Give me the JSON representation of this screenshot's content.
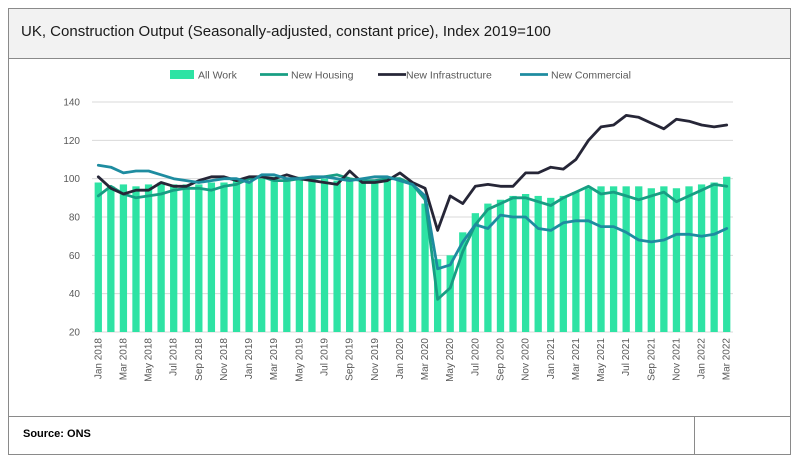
{
  "title": "UK, Construction Output (Seasonally-adjusted, constant price), Index 2019=100",
  "source": "Source: ONS",
  "colors": {
    "all_work": "#2EE3A4",
    "new_housing": "#179E83",
    "new_infrastructure": "#262637",
    "new_commercial": "#1E8CA0",
    "grid": "#d9d9d9"
  },
  "chart_data": {
    "type": "bar",
    "title": "",
    "xlabel": "",
    "ylabel": "",
    "ylim": [
      20,
      140
    ],
    "yticks": [
      20,
      40,
      60,
      80,
      100,
      120,
      140
    ],
    "grid": true,
    "legend_position": "top",
    "categories": [
      "Jan 2018",
      "Feb 2018",
      "Mar 2018",
      "Apr 2018",
      "May 2018",
      "Jun 2018",
      "Jul 2018",
      "Aug 2018",
      "Sep 2018",
      "Oct 2018",
      "Nov 2018",
      "Dec 2018",
      "Jan 2019",
      "Feb 2019",
      "Mar 2019",
      "Apr 2019",
      "May 2019",
      "Jun 2019",
      "Jul 2019",
      "Aug 2019",
      "Sep 2019",
      "Oct 2019",
      "Nov 2019",
      "Dec 2019",
      "Jan 2020",
      "Feb 2020",
      "Mar 2020",
      "Apr 2020",
      "May 2020",
      "Jun 2020",
      "Jul 2020",
      "Aug 2020",
      "Sep 2020",
      "Oct 2020",
      "Nov 2020",
      "Dec 2020",
      "Jan 2021",
      "Feb 2021",
      "Mar 2021",
      "Apr 2021",
      "May 2021",
      "Jun 2021",
      "Jul 2021",
      "Aug 2021",
      "Sep 2021",
      "Oct 2021",
      "Nov 2021",
      "Dec 2021",
      "Jan 2022",
      "Feb 2022",
      "Mar 2022"
    ],
    "tick_labels": [
      "Jan 2018",
      "Mar 2018",
      "May 2018",
      "Jul 2018",
      "Sep 2018",
      "Nov 2018",
      "Jan 2019",
      "Mar 2019",
      "May 2019",
      "Jul 2019",
      "Sep 2019",
      "Nov 2019",
      "Jan 2020",
      "Mar 2020",
      "May 2020",
      "Jul 2020",
      "Sep 2020",
      "Nov 2020",
      "Jan 2021",
      "Mar 2021",
      "May 2021",
      "Jul 2021",
      "Sep 2021",
      "Nov 2021",
      "Jan 2022",
      "Mar 2022"
    ],
    "series": [
      {
        "name": "All Work",
        "kind": "bar",
        "values": [
          98,
          96,
          97,
          96,
          97,
          98,
          97,
          97,
          97,
          98,
          98,
          99,
          99,
          100,
          101,
          100,
          101,
          100,
          100,
          99,
          100,
          99,
          99,
          100,
          99,
          98,
          87,
          58,
          60,
          72,
          82,
          87,
          89,
          91,
          92,
          91,
          90,
          91,
          93,
          95,
          96,
          96,
          96,
          96,
          95,
          96,
          95,
          96,
          97,
          98,
          101
        ]
      },
      {
        "name": "New Housing",
        "kind": "line",
        "values": [
          91,
          96,
          92,
          90,
          91,
          92,
          94,
          95,
          95,
          94,
          96,
          97,
          100,
          101,
          99,
          99,
          100,
          100,
          101,
          102,
          100,
          99,
          99,
          100,
          100,
          97,
          89,
          37,
          43,
          62,
          76,
          84,
          87,
          90,
          90,
          88,
          86,
          90,
          93,
          96,
          92,
          93,
          91,
          89,
          91,
          93,
          88,
          91,
          94,
          97,
          96
        ]
      },
      {
        "name": "New Infrastructure",
        "kind": "line",
        "values": [
          101,
          95,
          92,
          94,
          94,
          98,
          96,
          96,
          99,
          101,
          101,
          99,
          101,
          101,
          100,
          102,
          100,
          99,
          98,
          97,
          104,
          98,
          98,
          99,
          103,
          98,
          95,
          73,
          91,
          87,
          96,
          97,
          96,
          96,
          103,
          103,
          106,
          105,
          110,
          120,
          127,
          128,
          133,
          132,
          129,
          126,
          131,
          130,
          128,
          127,
          128
        ]
      },
      {
        "name": "New Commercial",
        "kind": "line",
        "values": [
          107,
          106,
          103,
          104,
          104,
          102,
          100,
          99,
          98,
          99,
          100,
          100,
          98,
          102,
          102,
          100,
          100,
          101,
          101,
          100,
          99,
          100,
          101,
          101,
          99,
          97,
          91,
          53,
          55,
          67,
          76,
          74,
          81,
          80,
          80,
          74,
          73,
          77,
          78,
          78,
          75,
          75,
          72,
          68,
          67,
          68,
          71,
          71,
          70,
          71,
          74
        ]
      }
    ]
  }
}
